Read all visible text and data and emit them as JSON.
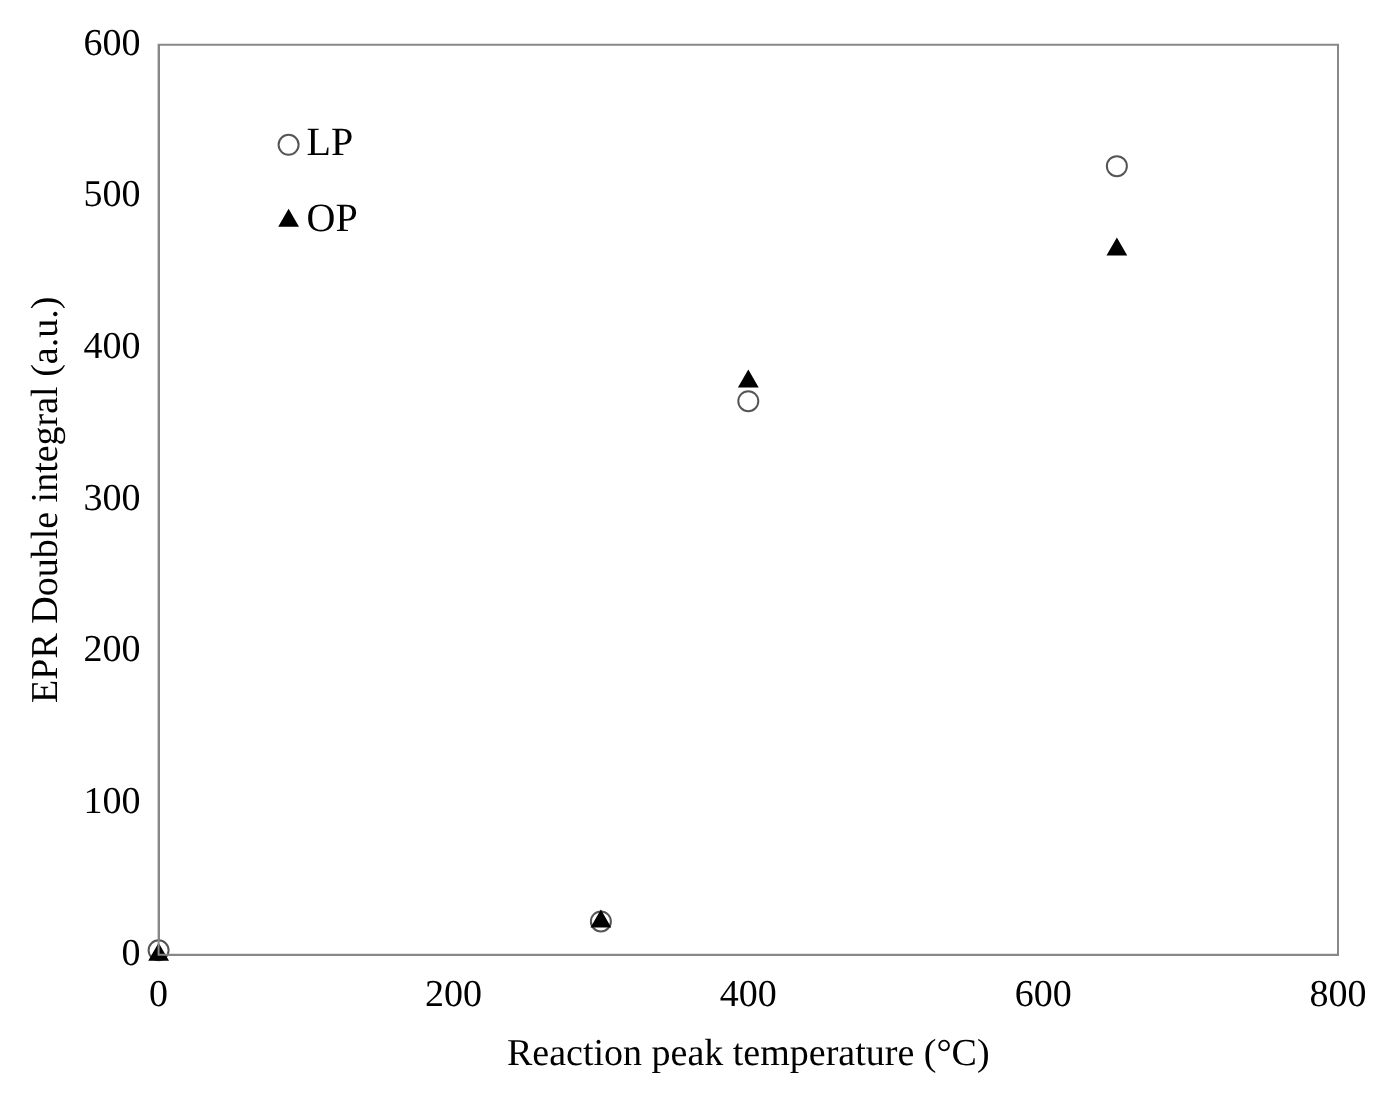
{
  "chart_data": {
    "type": "scatter",
    "xlabel": "Reaction peak temperature (°C)",
    "ylabel": "EPR Double integral (a.u.)",
    "xlim": [
      0,
      800
    ],
    "xticks": [
      0,
      200,
      400,
      600,
      800
    ],
    "ylim": [
      0,
      600
    ],
    "yticks": [
      0,
      100,
      200,
      300,
      400,
      500,
      600
    ],
    "grid": false,
    "legend": "top left",
    "series": [
      {
        "name": "LP",
        "color": "#555555",
        "marker": "circle",
        "x": [
          0,
          300,
          400,
          650
        ],
        "values": [
          3,
          22,
          365,
          520
        ]
      },
      {
        "name": "OP",
        "color": "#000000",
        "marker": "triangle",
        "x": [
          0,
          300,
          400,
          650
        ],
        "values": [
          0,
          22,
          378,
          465
        ]
      }
    ]
  }
}
